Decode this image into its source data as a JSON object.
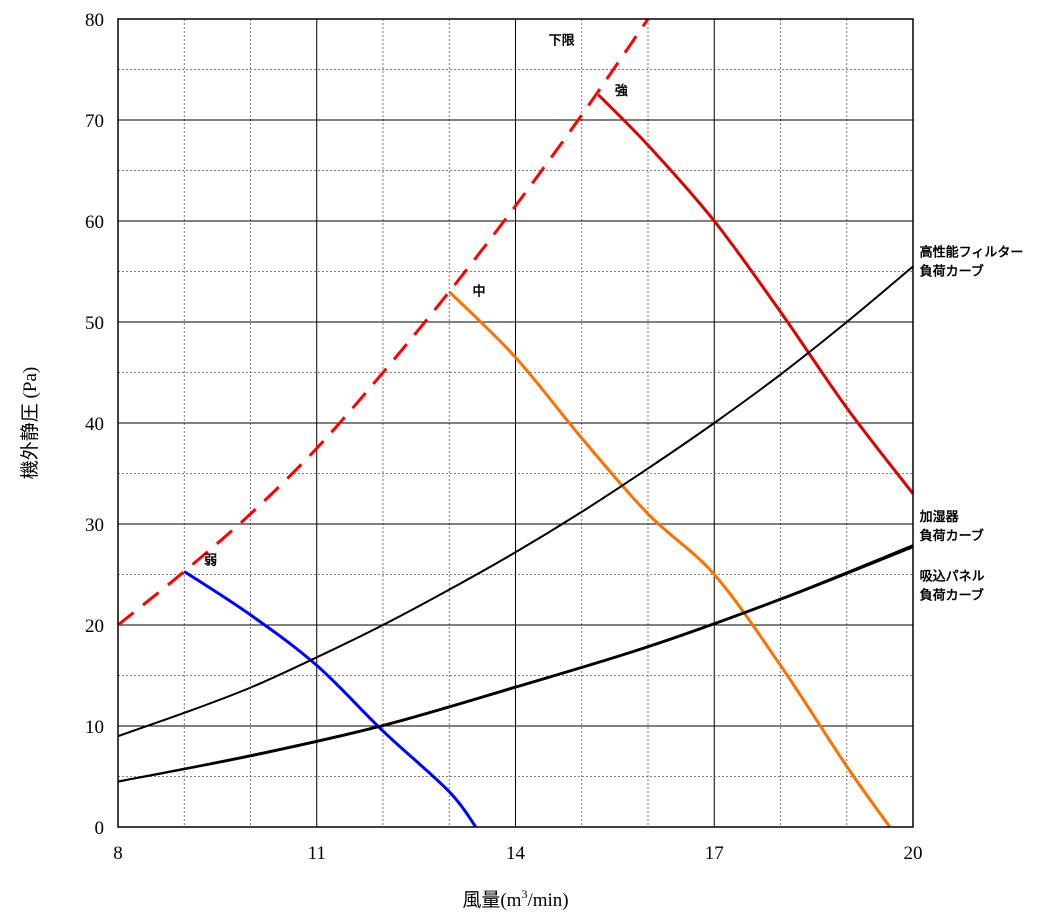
{
  "chart_data": {
    "type": "line",
    "title": "",
    "xlabel": "風量(m3/min)",
    "xlabel_parts": {
      "main": "風量(m",
      "sup": "3",
      "tail": "/min)"
    },
    "ylabel": "機外静圧 (Pa)",
    "xlim": [
      8,
      20
    ],
    "ylim": [
      0,
      80
    ],
    "x_ticks": [
      8,
      11,
      14,
      17,
      20
    ],
    "y_ticks": [
      0,
      10,
      20,
      30,
      40,
      50,
      60,
      70,
      80
    ],
    "x_minor_step": 1,
    "y_minor_step": 5,
    "grid": true,
    "legend": "none",
    "series": [
      {
        "name": "下限",
        "color": "#ff0000",
        "style": "dashed",
        "x": [
          8,
          9,
          10,
          11,
          12,
          13,
          14,
          15,
          16
        ],
        "y": [
          20,
          25.3,
          31,
          37.5,
          45,
          53,
          61.5,
          70.5,
          80
        ]
      },
      {
        "name": "強",
        "color": "#e00000",
        "style": "solid",
        "x": [
          15.25,
          16,
          17,
          18,
          19,
          20
        ],
        "y": [
          72.5,
          67.5,
          60,
          51,
          41.5,
          33
        ]
      },
      {
        "name": "中",
        "color": "#ff7000",
        "style": "solid",
        "x": [
          13,
          14,
          15,
          16,
          17,
          18,
          19,
          19.65
        ],
        "y": [
          53,
          46.5,
          38.5,
          31,
          25,
          16,
          6,
          0
        ]
      },
      {
        "name": "弱",
        "color": "#0000ff",
        "style": "solid",
        "x": [
          9,
          10,
          11,
          12,
          13,
          13.4
        ],
        "y": [
          25.3,
          21,
          16,
          9.5,
          3.5,
          0
        ]
      },
      {
        "name": "高性能フィルター負荷カーブ",
        "color": "#000000",
        "style": "solid",
        "x": [
          8,
          9,
          10,
          11,
          12,
          13,
          14,
          15,
          16,
          17,
          18,
          19,
          20
        ],
        "y": [
          9,
          11.3,
          13.8,
          16.8,
          20,
          23.5,
          27.2,
          31.2,
          35.5,
          40,
          44.8,
          50,
          55.5
        ]
      },
      {
        "name": "加湿器負荷カーブ",
        "color": "#000000",
        "style": "solid",
        "x": [
          8,
          10,
          12,
          14,
          16,
          18,
          20
        ],
        "y": [
          4.5,
          7,
          10,
          13.8,
          17.8,
          22.5,
          27.7
        ]
      },
      {
        "name": "吸込パネル負荷カーブ",
        "color": "#000000",
        "style": "solid",
        "x": [
          8,
          10,
          12,
          14,
          16,
          18,
          20
        ],
        "y": [
          4.5,
          7.1,
          10.1,
          13.9,
          17.9,
          22.6,
          27.9
        ]
      }
    ],
    "annotations": [
      {
        "id": "lower",
        "lines": [
          "下限"
        ],
        "x": 14.5,
        "y": 77.5
      },
      {
        "id": "strong",
        "lines": [
          "強"
        ],
        "x": 15.5,
        "y": 72.5
      },
      {
        "id": "mid",
        "lines": [
          "中"
        ],
        "x": 13.35,
        "y": 52.6
      },
      {
        "id": "weak",
        "lines": [
          "弱"
        ],
        "x": 9.3,
        "y": 26
      },
      {
        "id": "hepa",
        "lines": [
          "高性能フィルター",
          "負荷カーブ"
        ],
        "x": 20.1,
        "y": 56.5
      },
      {
        "id": "humid",
        "lines": [
          "加湿器",
          "負荷カーブ"
        ],
        "x": 20.1,
        "y": 30.3
      },
      {
        "id": "panel",
        "lines": [
          "吸込パネル",
          "負荷カーブ"
        ],
        "x": 20.1,
        "y": 24.4
      }
    ]
  }
}
